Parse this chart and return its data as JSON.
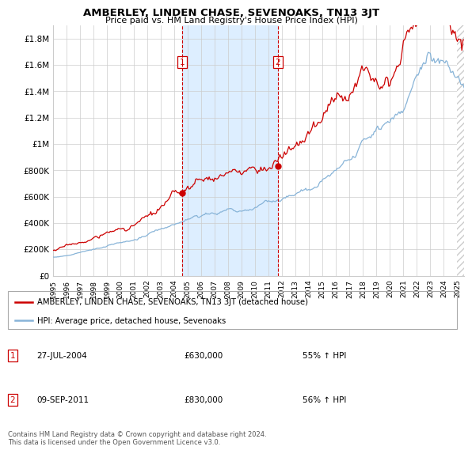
{
  "title": "AMBERLEY, LINDEN CHASE, SEVENOAKS, TN13 3JT",
  "subtitle": "Price paid vs. HM Land Registry's House Price Index (HPI)",
  "hpi_label": "HPI: Average price, detached house, Sevenoaks",
  "property_label": "AMBERLEY, LINDEN CHASE, SEVENOAKS, TN13 3JT (detached house)",
  "transaction1_date": "27-JUL-2004",
  "transaction1_price": 630000,
  "transaction1_pct": "55% ↑ HPI",
  "transaction2_date": "09-SEP-2011",
  "transaction2_price": 830000,
  "transaction2_pct": "56% ↑ HPI",
  "transaction1_x": 2004.58,
  "transaction2_x": 2011.69,
  "ylim_bottom": 0,
  "ylim_top": 1900000,
  "xlim_left": 1995.0,
  "xlim_right": 2025.5,
  "background_color": "#ffffff",
  "grid_color": "#cccccc",
  "hpi_color": "#88b4d8",
  "property_color": "#cc0000",
  "transaction_box_color": "#cc0000",
  "shaded_region_color": "#ddeeff",
  "footer_text": "Contains HM Land Registry data © Crown copyright and database right 2024.\nThis data is licensed under the Open Government Licence v3.0.",
  "yticks": [
    0,
    200000,
    400000,
    600000,
    800000,
    1000000,
    1200000,
    1400000,
    1600000,
    1800000
  ],
  "ytick_labels": [
    "£0",
    "£200K",
    "£400K",
    "£600K",
    "£800K",
    "£1M",
    "£1.2M",
    "£1.4M",
    "£1.6M",
    "£1.8M"
  ],
  "xticks": [
    1995,
    1996,
    1997,
    1998,
    1999,
    2000,
    2001,
    2002,
    2003,
    2004,
    2005,
    2006,
    2007,
    2008,
    2009,
    2010,
    2011,
    2012,
    2013,
    2014,
    2015,
    2016,
    2017,
    2018,
    2019,
    2020,
    2021,
    2022,
    2023,
    2024,
    2025
  ]
}
